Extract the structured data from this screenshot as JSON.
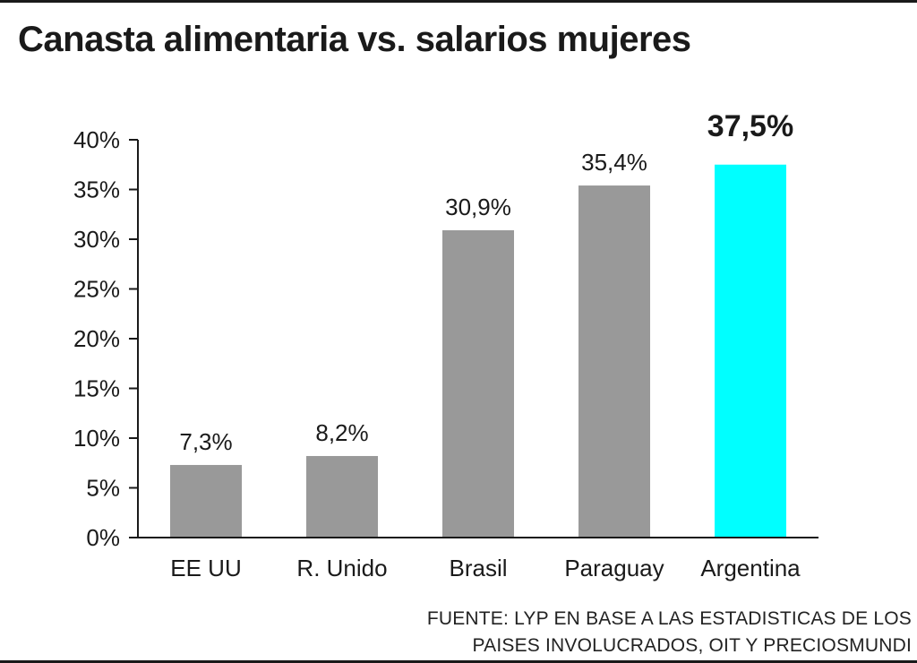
{
  "title": "Canasta alimentaria vs. salarios mujeres",
  "source": {
    "line1": "FUENTE: LYP EN BASE A LAS ESTADISTICAS DE LOS",
    "line2": "PAISES INVOLUCRADOS, OIT Y PRECIOSMUNDI"
  },
  "colors": {
    "bar": "#999999",
    "highlight": "#00ffff",
    "axis": "#1a1a1a",
    "text": "#1a1a1a"
  },
  "chart_data": {
    "type": "bar",
    "title": "Canasta alimentaria vs. salarios mujeres",
    "xlabel": "",
    "ylabel": "",
    "ylim": [
      0,
      40
    ],
    "categories": [
      "EE UU",
      "R. Unido",
      "Brasil",
      "Paraguay",
      "Argentina"
    ],
    "values": [
      7.3,
      8.2,
      30.9,
      35.4,
      37.5
    ],
    "value_labels": [
      "7,3%",
      "8,2%",
      "30,9%",
      "35,4%",
      "37,5%"
    ],
    "highlight_index": 4,
    "y_ticks": [
      0,
      5,
      10,
      15,
      20,
      25,
      30,
      35,
      40
    ],
    "y_tick_labels": [
      "0%",
      "5%",
      "10%",
      "15%",
      "20%",
      "25%",
      "30%",
      "35%",
      "40%"
    ],
    "grid": false
  }
}
